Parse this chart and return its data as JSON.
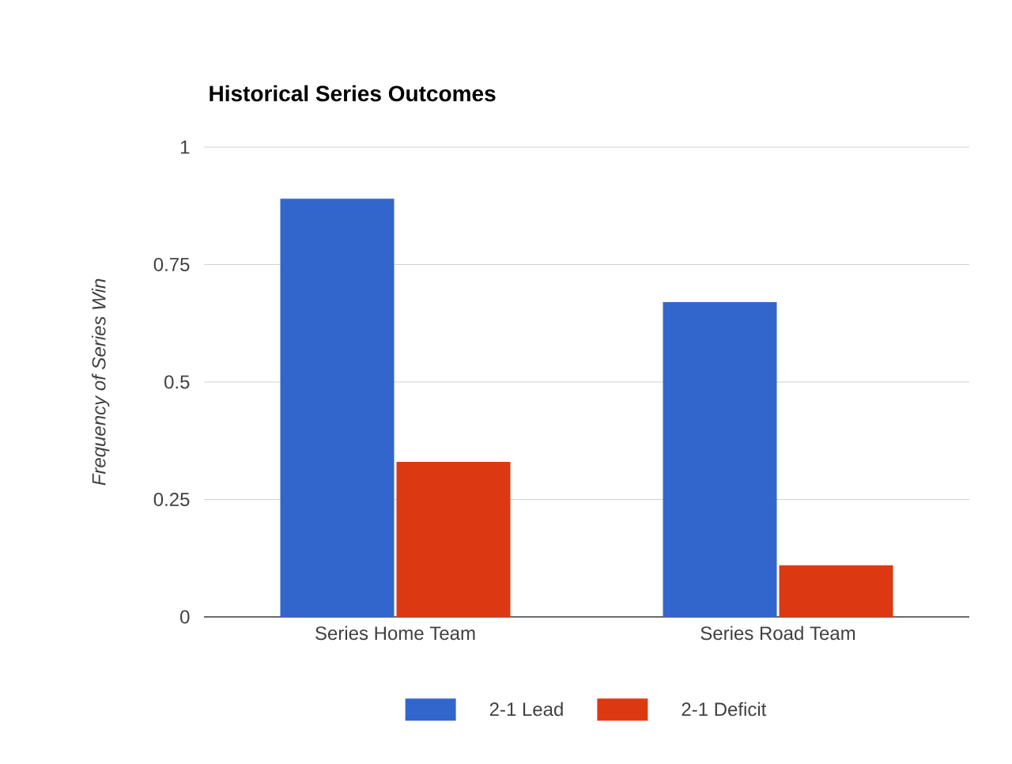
{
  "chart_data": {
    "type": "bar",
    "title": "Historical Series Outcomes",
    "ylabel": "Frequency of Series Win",
    "categories": [
      "Series Home Team",
      "Series Road Team"
    ],
    "series": [
      {
        "name": "2-1 Lead",
        "color": "#3366cc",
        "values": [
          0.89,
          0.67
        ]
      },
      {
        "name": "2-1 Deficit",
        "color": "#dc3912",
        "values": [
          0.33,
          0.11
        ]
      }
    ],
    "ylim": [
      0,
      1
    ],
    "yticks": [
      0,
      0.25,
      0.5,
      0.75,
      1
    ],
    "grid": "y",
    "legend": "bottom"
  }
}
